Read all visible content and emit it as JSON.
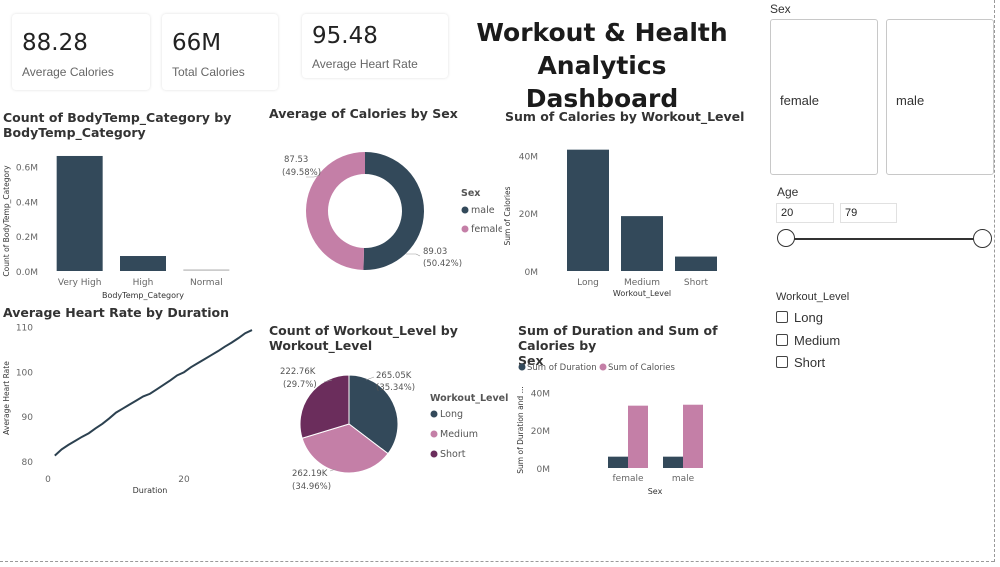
{
  "kpis": {
    "avg_calories": {
      "value": "88.28",
      "label": "Average Calories"
    },
    "total_calories": {
      "value": "66M",
      "label": "Total Calories"
    },
    "avg_heart_rate": {
      "value": "95.48",
      "label": "Average Heart Rate"
    }
  },
  "dashboard_title": {
    "line1": "Workout & Health",
    "line2": "Analytics Dashboard"
  },
  "colors": {
    "dark": "#33495a",
    "pink": "#c47fa7",
    "purple": "#6b2d5c",
    "dark_teal": "#2c4150"
  },
  "chart_data": [
    {
      "id": "bodytemp",
      "type": "bar",
      "title": [
        "Count of BodyTemp_Category by",
        "BodyTemp_Category"
      ],
      "xlabel": "BodyTemp_Category",
      "ylabel": "Count of BodyTemp_Category",
      "categories": [
        "Very High",
        "High",
        "Normal"
      ],
      "values": [
        0.66,
        0.086,
        0.01
      ],
      "ylim": [
        0,
        0.7
      ],
      "yticks": [
        "0.0M",
        "0.2M",
        "0.4M",
        "0.6M"
      ],
      "grid": false
    },
    {
      "id": "cal_by_sex",
      "type": "pie",
      "donut": true,
      "title": "Average of Calories by Sex",
      "legend_title": "Sex",
      "legend_position": "right",
      "slices": [
        {
          "name": "male",
          "value": 89.03,
          "label": "89.03",
          "pct": "(50.42%)"
        },
        {
          "name": "female",
          "value": 87.53,
          "label": "87.53",
          "pct": "(49.58%)"
        }
      ]
    },
    {
      "id": "cal_by_level",
      "type": "bar",
      "title": "Sum of Calories by Workout_Level",
      "xlabel": "Workout_Level",
      "ylabel": "Sum of Calories",
      "categories": [
        "Long",
        "Medium",
        "Short"
      ],
      "values": [
        42,
        19,
        5
      ],
      "ylim": [
        0,
        45
      ],
      "yticks": [
        "0M",
        "20M",
        "40M"
      ],
      "grid": false
    },
    {
      "id": "hr_by_duration",
      "type": "line",
      "title": "Average Heart Rate by Duration",
      "xlabel": "Duration",
      "ylabel": "Average Heart Rate",
      "x": [
        1,
        2,
        3,
        4,
        5,
        6,
        7,
        8,
        9,
        10,
        11,
        12,
        13,
        14,
        15,
        16,
        17,
        18,
        19,
        20,
        21,
        22,
        23,
        24,
        25,
        26,
        27,
        28,
        29,
        30
      ],
      "y": [
        81.2,
        82.6,
        83.6,
        84.5,
        85.4,
        86.2,
        87.3,
        88.3,
        89.5,
        90.8,
        91.7,
        92.6,
        93.5,
        94.4,
        95.0,
        96.0,
        97.0,
        98.0,
        99.1,
        99.8,
        100.9,
        101.8,
        102.7,
        103.6,
        104.5,
        105.5,
        106.4,
        107.4,
        108.5,
        109.2
      ],
      "xlim": [
        0,
        30
      ],
      "ylim": [
        78,
        111
      ],
      "xticks": [
        "0",
        "20"
      ],
      "yticks": [
        "80",
        "90",
        "100",
        "110"
      ]
    },
    {
      "id": "count_level",
      "type": "pie",
      "title": [
        "Count of Workout_Level by",
        "Workout_Level"
      ],
      "legend_title": "Workout_Level",
      "legend_position": "right",
      "slices": [
        {
          "name": "Long",
          "value": 265.05,
          "label": "265.05K",
          "pct": "(35.34%)"
        },
        {
          "name": "Medium",
          "value": 262.19,
          "label": "262.19K",
          "pct": "(34.96%)"
        },
        {
          "name": "Short",
          "value": 222.76,
          "label": "222.76K",
          "pct": "(29.7%)"
        }
      ]
    },
    {
      "id": "dur_cal_by_sex",
      "type": "bar",
      "title": [
        "Sum of Duration and Sum of Calories by",
        "Sex"
      ],
      "xlabel": "Sex",
      "ylabel": "Sum of Duration and ...",
      "categories": [
        "female",
        "male"
      ],
      "series": [
        {
          "name": "Sum of Duration",
          "values": [
            6,
            6
          ]
        },
        {
          "name": "Sum of Calories",
          "values": [
            33,
            33.5
          ]
        }
      ],
      "ylim": [
        0,
        45
      ],
      "yticks": [
        "0M",
        "20M",
        "40M"
      ],
      "legend_position": "top-left",
      "grid": false
    }
  ],
  "slicers": {
    "sex": {
      "title": "Sex",
      "options": [
        "female",
        "male"
      ]
    },
    "age": {
      "title": "Age",
      "min": "20",
      "max": "79"
    },
    "workout_level": {
      "title": "Workout_Level",
      "options": [
        "Long",
        "Medium",
        "Short"
      ]
    }
  }
}
